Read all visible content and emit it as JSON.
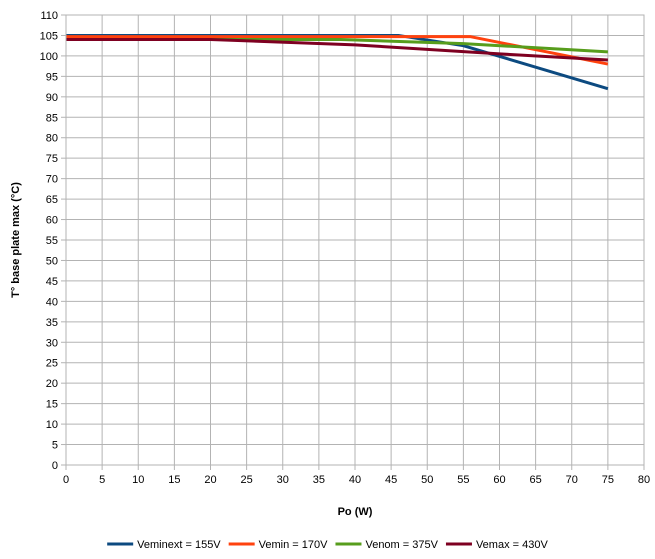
{
  "chart_data": {
    "type": "line",
    "xlabel": "Po (W)",
    "ylabel": "T° base plate max (°C)",
    "xlim": [
      0,
      80
    ],
    "ylim": [
      0,
      110
    ],
    "xticks": [
      0,
      5,
      10,
      15,
      20,
      25,
      30,
      35,
      40,
      45,
      50,
      55,
      60,
      65,
      70,
      75,
      80
    ],
    "yticks": [
      0,
      5,
      10,
      15,
      20,
      25,
      30,
      35,
      40,
      45,
      50,
      55,
      60,
      65,
      70,
      75,
      80,
      85,
      90,
      95,
      100,
      105,
      110
    ],
    "grid": true,
    "legend_position": "bottom",
    "series": [
      {
        "name": "Veminext = 155V",
        "color": "#0c4a80",
        "x": [
          0,
          46,
          55,
          75
        ],
        "y": [
          105,
          105,
          102.5,
          92
        ]
      },
      {
        "name": "Vemin = 170V",
        "color": "#ff420e",
        "x": [
          0,
          46,
          56,
          75
        ],
        "y": [
          104.7,
          104.7,
          104.7,
          98
        ]
      },
      {
        "name": "Venom = 375V",
        "color": "#579d1c",
        "x": [
          0,
          38,
          55,
          75
        ],
        "y": [
          104,
          104,
          103,
          101
        ]
      },
      {
        "name": "Vemax = 430V",
        "color": "#7e0021",
        "x": [
          0,
          20,
          40,
          60,
          75
        ],
        "y": [
          104,
          104,
          102.7,
          100.5,
          99
        ]
      }
    ]
  }
}
